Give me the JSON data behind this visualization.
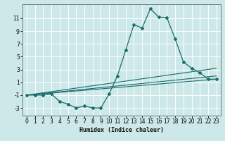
{
  "xlabel": "Humidex (Indice chaleur)",
  "bg_color": "#cce8e8",
  "grid_color": "#ffffff",
  "line_color": "#1a6b6b",
  "xlim": [
    -0.5,
    23.5
  ],
  "ylim": [
    -4.2,
    13.2
  ],
  "xticks": [
    0,
    1,
    2,
    3,
    4,
    5,
    6,
    7,
    8,
    9,
    10,
    11,
    12,
    13,
    14,
    15,
    16,
    17,
    18,
    19,
    20,
    21,
    22,
    23
  ],
  "yticks": [
    -3,
    -1,
    1,
    3,
    5,
    7,
    9,
    11
  ],
  "line1_x": [
    0,
    1,
    2,
    3,
    4,
    5,
    6,
    7,
    8,
    9,
    10,
    11,
    12,
    13,
    14,
    15,
    16,
    17,
    18,
    19,
    20,
    21,
    22,
    23
  ],
  "line1_y": [
    -1,
    -1,
    -1,
    -0.8,
    -2,
    -2.4,
    -3,
    -2.7,
    -3,
    -3,
    -0.8,
    2,
    6,
    10,
    9.5,
    12.5,
    11.2,
    11.1,
    7.8,
    4.2,
    3.2,
    2.5,
    1.5,
    1.5
  ],
  "line2_x": [
    0,
    23
  ],
  "line2_y": [
    -1,
    2.0
  ],
  "line3_x": [
    0,
    23
  ],
  "line3_y": [
    -1,
    1.5
  ],
  "line4_x": [
    0,
    23
  ],
  "line4_y": [
    -1,
    3.2
  ]
}
